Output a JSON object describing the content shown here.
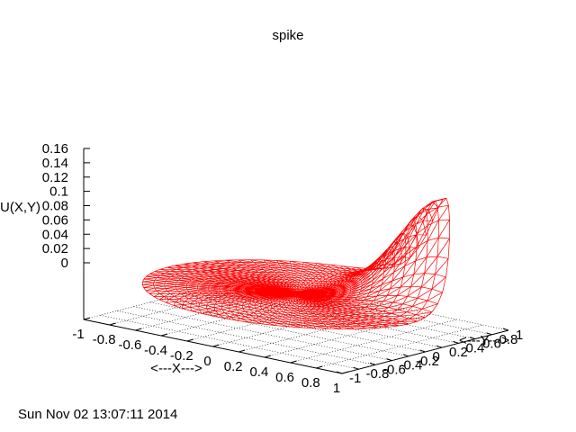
{
  "chart_data": {
    "type": "surface",
    "title": "spike",
    "xlabel": "<---X--->",
    "ylabel": "<---Y--->",
    "zlabel": "U(X,Y)",
    "x_ticks": [
      "-1",
      "-0.8",
      "-0.6",
      "-0.4",
      "-0.2",
      "0",
      "0.2",
      "0.4",
      "0.6",
      "0.8",
      "1"
    ],
    "y_ticks": [
      "-1",
      "-0.8",
      "-0.6",
      "-0.4",
      "-0.2",
      "0",
      "0.2",
      "0.4",
      "0.6",
      "0.8",
      "1"
    ],
    "z_ticks": [
      "0",
      "0.02",
      "0.04",
      "0.06",
      "0.08",
      "0.1",
      "0.12",
      "0.14",
      "0.16"
    ],
    "xlim": [
      -1,
      1
    ],
    "ylim": [
      -1,
      1
    ],
    "zlim": [
      0,
      0.16
    ],
    "grid": "base",
    "surface": {
      "domain": "unit disk",
      "peak_value": 0.16,
      "peak_location": [
        1,
        1
      ],
      "edge_value": 0.02,
      "color": "#ff0000"
    }
  },
  "timestamp": "Sun Nov 02 13:07:11 2014"
}
